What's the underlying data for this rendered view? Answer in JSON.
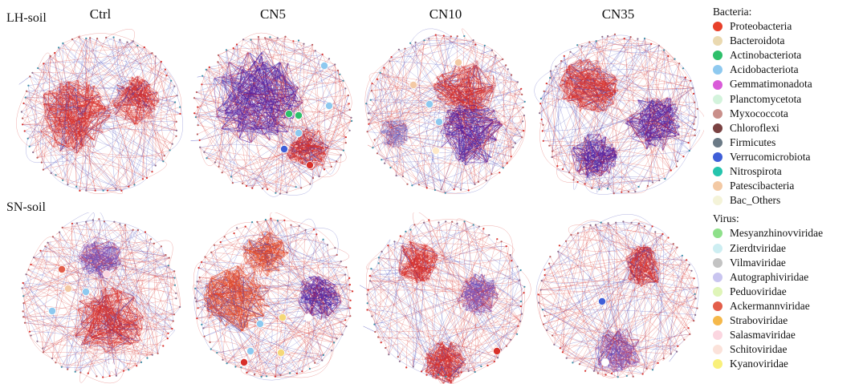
{
  "chart_data": {
    "type": "network",
    "rows": [
      "LH-soil",
      "SN-soil"
    ],
    "columns": [
      "Ctrl",
      "CN5",
      "CN10",
      "CN35"
    ],
    "edge_colors": [
      "#d8302a",
      "#3b3fb8"
    ],
    "panels": [
      {
        "row": "LH-soil",
        "column": "Ctrl",
        "modules": [
          {
            "cx": 0.33,
            "cy": 0.52,
            "r": 0.24,
            "color": "#d8302a"
          },
          {
            "cx": 0.72,
            "cy": 0.42,
            "r": 0.16,
            "color": "#d8302a"
          }
        ],
        "big_nodes": []
      },
      {
        "row": "LH-soil",
        "column": "CN5",
        "modules": [
          {
            "cx": 0.4,
            "cy": 0.4,
            "r": 0.3,
            "color": "#5a1fa0"
          },
          {
            "cx": 0.72,
            "cy": 0.72,
            "r": 0.14,
            "color": "#d8302a"
          }
        ],
        "big_nodes": [
          {
            "x": 0.6,
            "y": 0.5,
            "c": "#2ebf6a"
          },
          {
            "x": 0.66,
            "y": 0.51,
            "c": "#2ebf6a"
          },
          {
            "x": 0.82,
            "y": 0.2,
            "c": "#8ec9ef"
          },
          {
            "x": 0.85,
            "y": 0.45,
            "c": "#8ec9ef"
          },
          {
            "x": 0.57,
            "y": 0.72,
            "c": "#3f5fd8"
          },
          {
            "x": 0.66,
            "y": 0.62,
            "c": "#8ec9ef"
          },
          {
            "x": 0.73,
            "y": 0.82,
            "c": "#d8302a"
          }
        ]
      },
      {
        "row": "LH-soil",
        "column": "CN10",
        "modules": [
          {
            "cx": 0.62,
            "cy": 0.35,
            "r": 0.2,
            "color": "#d8302a"
          },
          {
            "cx": 0.66,
            "cy": 0.62,
            "r": 0.21,
            "color": "#5a1fa0"
          },
          {
            "cx": 0.18,
            "cy": 0.62,
            "r": 0.1,
            "color": "#a08fd0"
          }
        ],
        "big_nodes": [
          {
            "x": 0.3,
            "y": 0.32,
            "c": "#f3c9a4"
          },
          {
            "x": 0.58,
            "y": 0.18,
            "c": "#f3c9a4"
          },
          {
            "x": 0.4,
            "y": 0.44,
            "c": "#8ec9ef"
          },
          {
            "x": 0.46,
            "y": 0.55,
            "c": "#8ec9ef"
          },
          {
            "x": 0.44,
            "y": 0.73,
            "c": "#fde8c8"
          }
        ]
      },
      {
        "row": "LH-soil",
        "column": "CN35",
        "modules": [
          {
            "cx": 0.32,
            "cy": 0.33,
            "r": 0.19,
            "color": "#d8302a"
          },
          {
            "cx": 0.72,
            "cy": 0.55,
            "r": 0.19,
            "color": "#5a1fa0"
          },
          {
            "cx": 0.35,
            "cy": 0.76,
            "r": 0.15,
            "color": "#5a1fa0"
          }
        ],
        "big_nodes": []
      },
      {
        "row": "SN-soil",
        "column": "Ctrl",
        "modules": [
          {
            "cx": 0.55,
            "cy": 0.65,
            "r": 0.23,
            "color": "#d8302a"
          },
          {
            "cx": 0.5,
            "cy": 0.25,
            "r": 0.14,
            "color": "#8a5ab8"
          }
        ],
        "big_nodes": [
          {
            "x": 0.26,
            "y": 0.32,
            "c": "#e35e4a"
          },
          {
            "x": 0.3,
            "y": 0.44,
            "c": "#f3c9a4"
          },
          {
            "x": 0.41,
            "y": 0.46,
            "c": "#8ec9ef"
          },
          {
            "x": 0.2,
            "y": 0.58,
            "c": "#8ec9ef"
          },
          {
            "x": 0.54,
            "y": 0.35,
            "c": "#fbd6e0"
          },
          {
            "x": 0.57,
            "y": 0.93,
            "c": "#ffffff"
          }
        ]
      },
      {
        "row": "SN-soil",
        "column": "CN5",
        "modules": [
          {
            "cx": 0.28,
            "cy": 0.5,
            "r": 0.22,
            "color": "#e8502a"
          },
          {
            "cx": 0.78,
            "cy": 0.5,
            "r": 0.15,
            "color": "#5a1fa0"
          },
          {
            "cx": 0.45,
            "cy": 0.22,
            "r": 0.15,
            "color": "#e8502a"
          }
        ],
        "big_nodes": [
          {
            "x": 0.72,
            "y": 0.62,
            "c": "#ffffff"
          },
          {
            "x": 0.56,
            "y": 0.62,
            "c": "#f5d878"
          },
          {
            "x": 0.42,
            "y": 0.66,
            "c": "#8ec9ef"
          },
          {
            "x": 0.36,
            "y": 0.83,
            "c": "#8ec9ef"
          },
          {
            "x": 0.32,
            "y": 0.9,
            "c": "#d8302a"
          },
          {
            "x": 0.55,
            "y": 0.84,
            "c": "#f5d878"
          }
        ]
      },
      {
        "row": "SN-soil",
        "column": "CN10",
        "modules": [
          {
            "cx": 0.32,
            "cy": 0.27,
            "r": 0.14,
            "color": "#d8302a"
          },
          {
            "cx": 0.5,
            "cy": 0.9,
            "r": 0.14,
            "color": "#d8302a"
          },
          {
            "cx": 0.7,
            "cy": 0.48,
            "r": 0.14,
            "color": "#8a5ab8"
          }
        ],
        "big_nodes": [
          {
            "x": 0.82,
            "y": 0.83,
            "c": "#d8302a"
          }
        ]
      },
      {
        "row": "SN-soil",
        "column": "CN35",
        "modules": [
          {
            "cx": 0.66,
            "cy": 0.3,
            "r": 0.14,
            "color": "#d8302a"
          },
          {
            "cx": 0.5,
            "cy": 0.82,
            "r": 0.16,
            "color": "#8a5ab8"
          }
        ],
        "big_nodes": [
          {
            "x": 0.4,
            "y": 0.52,
            "c": "#3f5fd8"
          },
          {
            "x": 0.42,
            "y": 0.9,
            "c": "#ffffff"
          }
        ]
      }
    ]
  },
  "legend": {
    "bacteria_title": "Bacteria:",
    "bacteria": [
      {
        "label": "Proteobacteria",
        "color": "#e8402a"
      },
      {
        "label": "Bacteroidota",
        "color": "#ead9b0"
      },
      {
        "label": "Actinobacteriota",
        "color": "#2ebf6a"
      },
      {
        "label": "Acidobacteriota",
        "color": "#8ec9ef"
      },
      {
        "label": "Gemmatimonadota",
        "color": "#d95bd8"
      },
      {
        "label": "Planctomycetota",
        "color": "#d3f3dc"
      },
      {
        "label": "Myxococcota",
        "color": "#c98f8a"
      },
      {
        "label": "Chloroflexi",
        "color": "#7a4242"
      },
      {
        "label": "Firmicutes",
        "color": "#6b7a86"
      },
      {
        "label": "Verrucomicrobiota",
        "color": "#3f5fd8"
      },
      {
        "label": "Nitrospirota",
        "color": "#25c4ad"
      },
      {
        "label": "Patescibacteria",
        "color": "#f3c9a4"
      },
      {
        "label": "Bac_Others",
        "color": "#f4f3d8"
      }
    ],
    "virus_title": "Virus:",
    "virus": [
      {
        "label": "Mesyanzhinovviridae",
        "color": "#8ee08a"
      },
      {
        "label": "Zierdtviridae",
        "color": "#cdeef2"
      },
      {
        "label": "Vilmaviridae",
        "color": "#c3c3c3"
      },
      {
        "label": "Autographiviridae",
        "color": "#c9c5f0"
      },
      {
        "label": "Peduoviridae",
        "color": "#dff5b8"
      },
      {
        "label": "Ackermannviridae",
        "color": "#e35e4a"
      },
      {
        "label": "Straboviridae",
        "color": "#f5b84a"
      },
      {
        "label": "Salasmaviridae",
        "color": "#fbd6e0"
      },
      {
        "label": "Schitoviridae",
        "color": "#fbe2da"
      },
      {
        "label": "Kyanoviridae",
        "color": "#f9f07a"
      }
    ]
  }
}
